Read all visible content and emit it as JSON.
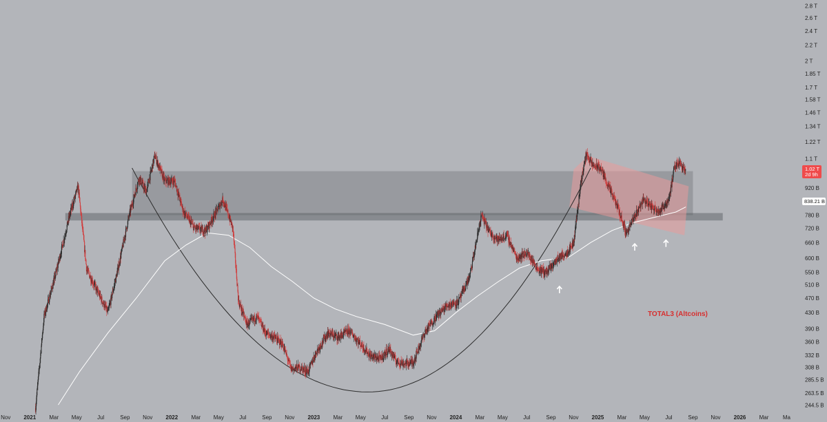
{
  "chart_data": {
    "type": "candlestick",
    "symbol_annotation": "TOTAL3 (Altcoins)",
    "y_scale": "log",
    "y_ticks": [
      "2.8 T",
      "2.6 T",
      "2.4 T",
      "2.2 T",
      "2 T",
      "1.85 T",
      "1.7 T",
      "1.58 T",
      "1.46 T",
      "1.34 T",
      "1.22 T",
      "1.1 T",
      "1.02 T",
      "920 B",
      "838.21 B",
      "780 B",
      "720 B",
      "660 B",
      "600 B",
      "550 B",
      "510 B",
      "470 B",
      "430 B",
      "390 B",
      "360 B",
      "332 B",
      "308 B",
      "285.5 B",
      "263.5 B",
      "244.5 B"
    ],
    "y_tick_values": [
      2800,
      2600,
      2400,
      2200,
      2000,
      1850,
      1700,
      1580,
      1460,
      1340,
      1220,
      1100,
      1020,
      920,
      838.21,
      780,
      720,
      660,
      600,
      550,
      510,
      470,
      430,
      390,
      360,
      332,
      308,
      285.5,
      263.5,
      244.5
    ],
    "ylim": [
      235,
      2900
    ],
    "x_ticks": [
      {
        "label": "Nov",
        "t": 2020.83
      },
      {
        "label": "2021",
        "t": 2021.0,
        "year": true
      },
      {
        "label": "Mar",
        "t": 2021.17
      },
      {
        "label": "May",
        "t": 2021.33
      },
      {
        "label": "Jul",
        "t": 2021.5
      },
      {
        "label": "Sep",
        "t": 2021.67
      },
      {
        "label": "Nov",
        "t": 2021.83
      },
      {
        "label": "2022",
        "t": 2022.0,
        "year": true
      },
      {
        "label": "Mar",
        "t": 2022.17
      },
      {
        "label": "May",
        "t": 2022.33
      },
      {
        "label": "Jul",
        "t": 2022.5
      },
      {
        "label": "Sep",
        "t": 2022.67
      },
      {
        "label": "Nov",
        "t": 2022.83
      },
      {
        "label": "2023",
        "t": 2023.0,
        "year": true
      },
      {
        "label": "Mar",
        "t": 2023.17
      },
      {
        "label": "May",
        "t": 2023.33
      },
      {
        "label": "Jul",
        "t": 2023.5
      },
      {
        "label": "Sep",
        "t": 2023.67
      },
      {
        "label": "Nov",
        "t": 2023.83
      },
      {
        "label": "2024",
        "t": 2024.0,
        "year": true
      },
      {
        "label": "Mar",
        "t": 2024.17
      },
      {
        "label": "May",
        "t": 2024.33
      },
      {
        "label": "Jul",
        "t": 2024.5
      },
      {
        "label": "Sep",
        "t": 2024.67
      },
      {
        "label": "Nov",
        "t": 2024.83
      },
      {
        "label": "2025",
        "t": 2025.0,
        "year": true
      },
      {
        "label": "Mar",
        "t": 2025.17
      },
      {
        "label": "May",
        "t": 2025.33
      },
      {
        "label": "Jul",
        "t": 2025.5
      },
      {
        "label": "Sep",
        "t": 2025.67
      },
      {
        "label": "Nov",
        "t": 2025.83
      },
      {
        "label": "2026",
        "t": 2026.0,
        "year": true
      },
      {
        "label": "Mar",
        "t": 2026.17
      },
      {
        "label": "Ma",
        "t": 2026.33
      }
    ],
    "xlim": [
      2020.79,
      2026.42
    ],
    "price_path": [
      [
        2021.04,
        240
      ],
      [
        2021.1,
        420
      ],
      [
        2021.18,
        540
      ],
      [
        2021.28,
        780
      ],
      [
        2021.34,
        930
      ],
      [
        2021.4,
        560
      ],
      [
        2021.5,
        470
      ],
      [
        2021.55,
        430
      ],
      [
        2021.62,
        560
      ],
      [
        2021.7,
        780
      ],
      [
        2021.77,
        980
      ],
      [
        2021.82,
        900
      ],
      [
        2021.88,
        1120
      ],
      [
        2021.95,
        960
      ],
      [
        2022.02,
        960
      ],
      [
        2022.08,
        800
      ],
      [
        2022.16,
        720
      ],
      [
        2022.24,
        710
      ],
      [
        2022.3,
        780
      ],
      [
        2022.36,
        860
      ],
      [
        2022.43,
        720
      ],
      [
        2022.47,
        460
      ],
      [
        2022.53,
        400
      ],
      [
        2022.6,
        420
      ],
      [
        2022.66,
        380
      ],
      [
        2022.72,
        370
      ],
      [
        2022.78,
        355
      ],
      [
        2022.84,
        305
      ],
      [
        2022.9,
        308
      ],
      [
        2022.96,
        300
      ],
      [
        2023.02,
        340
      ],
      [
        2023.1,
        380
      ],
      [
        2023.17,
        370
      ],
      [
        2023.25,
        385
      ],
      [
        2023.33,
        355
      ],
      [
        2023.4,
        330
      ],
      [
        2023.47,
        325
      ],
      [
        2023.53,
        345
      ],
      [
        2023.58,
        320
      ],
      [
        2023.64,
        315
      ],
      [
        2023.7,
        318
      ],
      [
        2023.78,
        380
      ],
      [
        2023.86,
        420
      ],
      [
        2023.94,
        450
      ],
      [
        2024.02,
        460
      ],
      [
        2024.1,
        540
      ],
      [
        2024.18,
        780
      ],
      [
        2024.24,
        700
      ],
      [
        2024.3,
        670
      ],
      [
        2024.36,
        690
      ],
      [
        2024.43,
        600
      ],
      [
        2024.5,
        620
      ],
      [
        2024.58,
        560
      ],
      [
        2024.64,
        550
      ],
      [
        2024.72,
        600
      ],
      [
        2024.78,
        620
      ],
      [
        2024.83,
        660
      ],
      [
        2024.88,
        950
      ],
      [
        2024.92,
        1140
      ],
      [
        2024.96,
        1060
      ],
      [
        2025.02,
        1040
      ],
      [
        2025.08,
        920
      ],
      [
        2025.14,
        820
      ],
      [
        2025.2,
        700
      ],
      [
        2025.25,
        760
      ],
      [
        2025.32,
        860
      ],
      [
        2025.38,
        820
      ],
      [
        2025.44,
        800
      ],
      [
        2025.5,
        860
      ],
      [
        2025.54,
        1040
      ],
      [
        2025.57,
        1080
      ],
      [
        2025.62,
        1030
      ]
    ],
    "moving_average": [
      [
        2021.2,
        245
      ],
      [
        2021.35,
        300
      ],
      [
        2021.55,
        380
      ],
      [
        2021.75,
        470
      ],
      [
        2021.95,
        590
      ],
      [
        2022.1,
        650
      ],
      [
        2022.25,
        700
      ],
      [
        2022.4,
        690
      ],
      [
        2022.55,
        640
      ],
      [
        2022.7,
        570
      ],
      [
        2022.85,
        520
      ],
      [
        2023.0,
        470
      ],
      [
        2023.15,
        440
      ],
      [
        2023.3,
        420
      ],
      [
        2023.5,
        400
      ],
      [
        2023.7,
        375
      ],
      [
        2023.85,
        385
      ],
      [
        2024.0,
        430
      ],
      [
        2024.15,
        475
      ],
      [
        2024.3,
        520
      ],
      [
        2024.45,
        565
      ],
      [
        2024.6,
        590
      ],
      [
        2024.8,
        605
      ],
      [
        2024.95,
        660
      ],
      [
        2025.1,
        710
      ],
      [
        2025.25,
        745
      ],
      [
        2025.4,
        770
      ],
      [
        2025.55,
        795
      ],
      [
        2025.62,
        820
      ]
    ],
    "resistance_zone": {
      "t_start": 2021.72,
      "t_end": 2025.67,
      "price_top": 1020,
      "price_bottom": 780
    },
    "horizontal_band": {
      "t_start": 2021.25,
      "t_end": 2025.88,
      "price_top": 790,
      "price_bottom": 755
    },
    "cup_curve": {
      "t_start": 2021.72,
      "t_vertex": 2023.38,
      "t_end": 2024.95,
      "price_top": 1040,
      "price_bottom": 265
    },
    "descending_channel": {
      "points": [
        [
          2024.83,
          1030
        ],
        [
          2024.93,
          1120
        ],
        [
          2025.64,
          930
        ],
        [
          2025.61,
          690
        ],
        [
          2024.8,
          820
        ]
      ]
    },
    "arrows": [
      [
        2024.73,
        505
      ],
      [
        2025.26,
        655
      ],
      [
        2025.48,
        670
      ]
    ],
    "last_price": "1.02 T",
    "countdown": "2d 9h",
    "ma_price": "838.21 B",
    "colors": {
      "background": "#b3b5ba",
      "candle_up": "#2a2a2a",
      "candle_down": "#d13b3b",
      "ma_line": "#ffffff",
      "annotation": "#d72f2f",
      "zone": "#6b6e73",
      "channel": "#e89a9a",
      "price_tag": "#ef4b4b"
    }
  }
}
